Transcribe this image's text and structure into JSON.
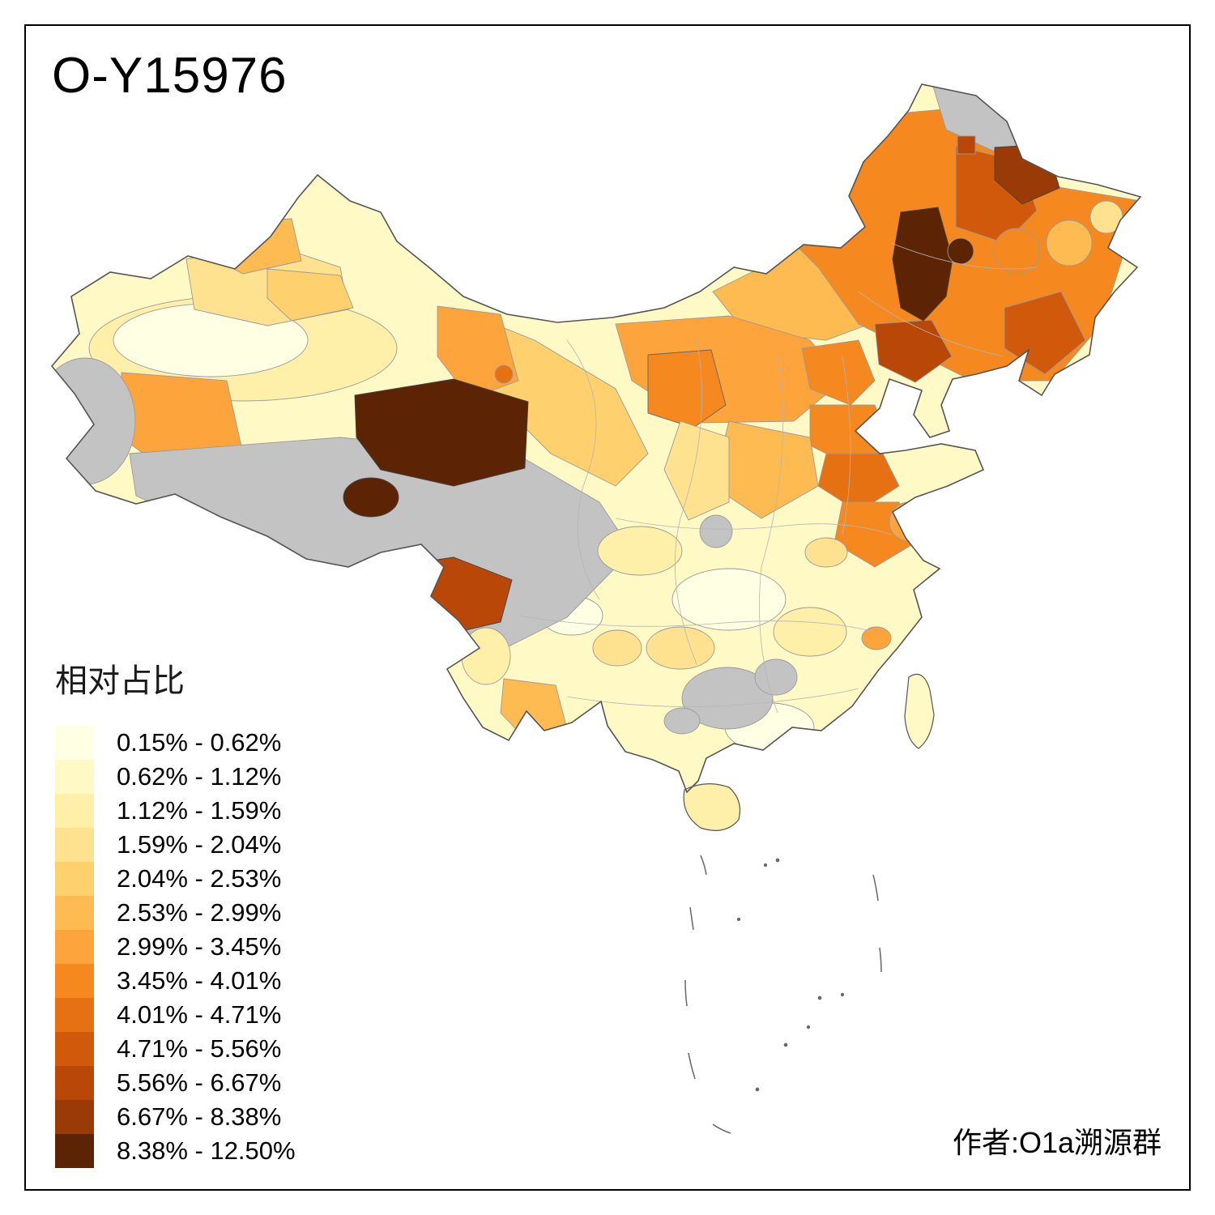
{
  "title": "O-Y15976",
  "legend": {
    "title": "相对占比",
    "no_data_color": "#C3C3C4",
    "items": [
      {
        "range": "0.15% - 0.62%",
        "color": "#FFFFE3"
      },
      {
        "range": "0.62% - 1.12%",
        "color": "#FFF9C6"
      },
      {
        "range": "1.12% - 1.59%",
        "color": "#FEF0A9"
      },
      {
        "range": "1.59% - 2.04%",
        "color": "#FEE28F"
      },
      {
        "range": "2.04% - 2.53%",
        "color": "#FED16E"
      },
      {
        "range": "2.53% - 2.99%",
        "color": "#FEBB52"
      },
      {
        "range": "2.99% - 3.45%",
        "color": "#FEA43D"
      },
      {
        "range": "3.45% - 4.01%",
        "color": "#F5881F"
      },
      {
        "range": "4.01% - 4.71%",
        "color": "#E57112"
      },
      {
        "range": "4.71% - 5.56%",
        "color": "#D1590C"
      },
      {
        "range": "5.56% - 6.67%",
        "color": "#B84708"
      },
      {
        "range": "6.67% - 8.38%",
        "color": "#9A3A06"
      },
      {
        "range": "8.38% - 12.50%",
        "color": "#5C2405"
      }
    ]
  },
  "attribution": "作者:O1a溯源群",
  "map": {
    "region_label": "China prefecture-level choropleth",
    "outline_color": "#555555",
    "border_color": "#9a9a9a"
  }
}
